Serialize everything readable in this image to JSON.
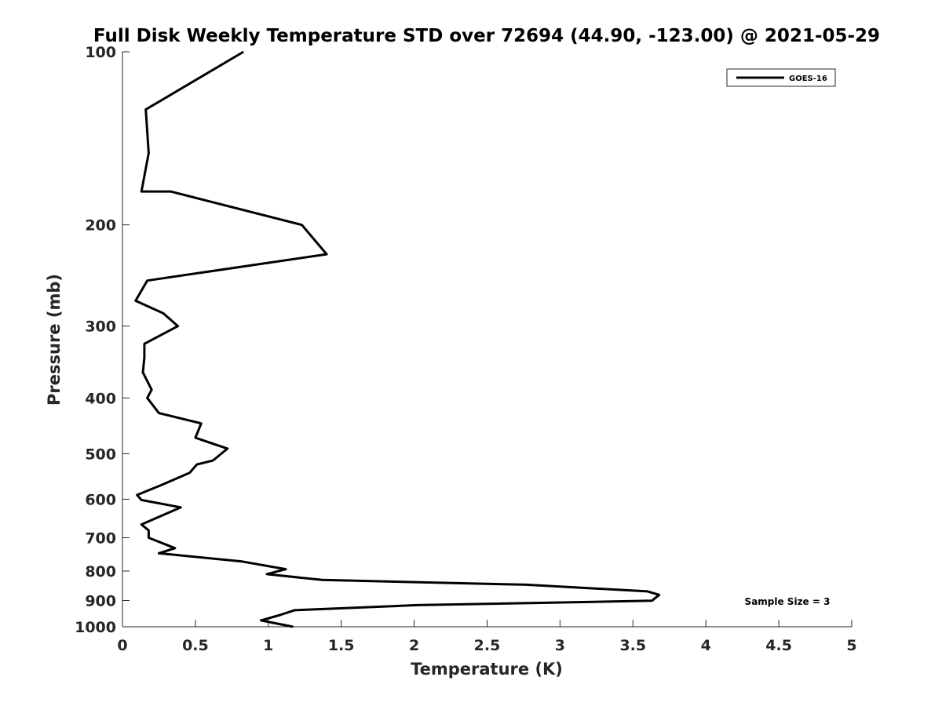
{
  "chart_data": {
    "type": "line",
    "title": "Full Disk Weekly Temperature STD over 72694 (44.90, -123.00) @ 2021-05-29",
    "xlabel": "Temperature (K)",
    "ylabel": "Pressure (mb)",
    "xlim": [
      0,
      5
    ],
    "ylim": [
      100,
      1000
    ],
    "y_scale": "log",
    "y_reversed": true,
    "grid": false,
    "legend_position": "top-right",
    "x_ticks": [
      "0",
      "0.5",
      "1",
      "1.5",
      "2",
      "2.5",
      "3",
      "3.5",
      "4",
      "4.5",
      "5"
    ],
    "y_ticks": [
      "100",
      "200",
      "300",
      "400",
      "500",
      "600",
      "700",
      "800",
      "900",
      "1000"
    ],
    "annotation": "Sample Size = 3",
    "series": [
      {
        "name": "GOES-16",
        "color": "#000000",
        "points": [
          [
            0.83,
            100
          ],
          [
            0.16,
            126
          ],
          [
            0.18,
            150
          ],
          [
            0.13,
            175
          ],
          [
            0.33,
            175
          ],
          [
            1.23,
            200
          ],
          [
            1.4,
            225
          ],
          [
            0.17,
            250
          ],
          [
            0.09,
            271
          ],
          [
            0.28,
            285
          ],
          [
            0.38,
            300
          ],
          [
            0.15,
            322
          ],
          [
            0.15,
            340
          ],
          [
            0.14,
            361
          ],
          [
            0.2,
            387
          ],
          [
            0.17,
            400
          ],
          [
            0.25,
            425
          ],
          [
            0.54,
            443
          ],
          [
            0.5,
            469
          ],
          [
            0.72,
            490
          ],
          [
            0.62,
            514
          ],
          [
            0.51,
            522
          ],
          [
            0.46,
            540
          ],
          [
            0.26,
            568
          ],
          [
            0.1,
            590
          ],
          [
            0.13,
            602
          ],
          [
            0.4,
            620
          ],
          [
            0.13,
            664
          ],
          [
            0.18,
            680
          ],
          [
            0.18,
            700
          ],
          [
            0.36,
            730
          ],
          [
            0.25,
            745
          ],
          [
            0.82,
            770
          ],
          [
            1.12,
            794
          ],
          [
            0.99,
            810
          ],
          [
            1.37,
            829
          ],
          [
            2.77,
            845
          ],
          [
            3.6,
            868
          ],
          [
            3.68,
            880
          ],
          [
            3.63,
            901
          ],
          [
            2.02,
            917
          ],
          [
            1.18,
            936
          ],
          [
            1.08,
            954
          ],
          [
            0.95,
            975
          ],
          [
            1.17,
            1000
          ]
        ]
      }
    ]
  }
}
